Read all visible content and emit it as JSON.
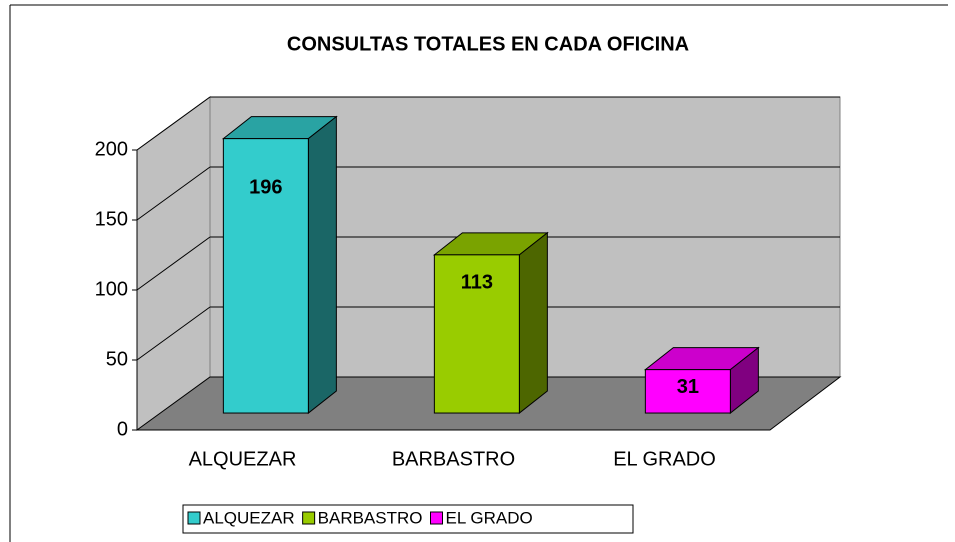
{
  "chart_data": {
    "type": "bar3d",
    "title": "CONSULTAS TOTALES EN CADA OFICINA",
    "categories": [
      "ALQUEZAR",
      "BARBASTRO",
      "EL GRADO"
    ],
    "values": [
      196,
      113,
      31
    ],
    "colors": [
      "#33cccc",
      "#99cc00",
      "#ff00ff"
    ],
    "ylim": [
      0,
      200
    ],
    "yticks": [
      0,
      50,
      100,
      150,
      200
    ],
    "grid": true,
    "legend": "bottom"
  }
}
